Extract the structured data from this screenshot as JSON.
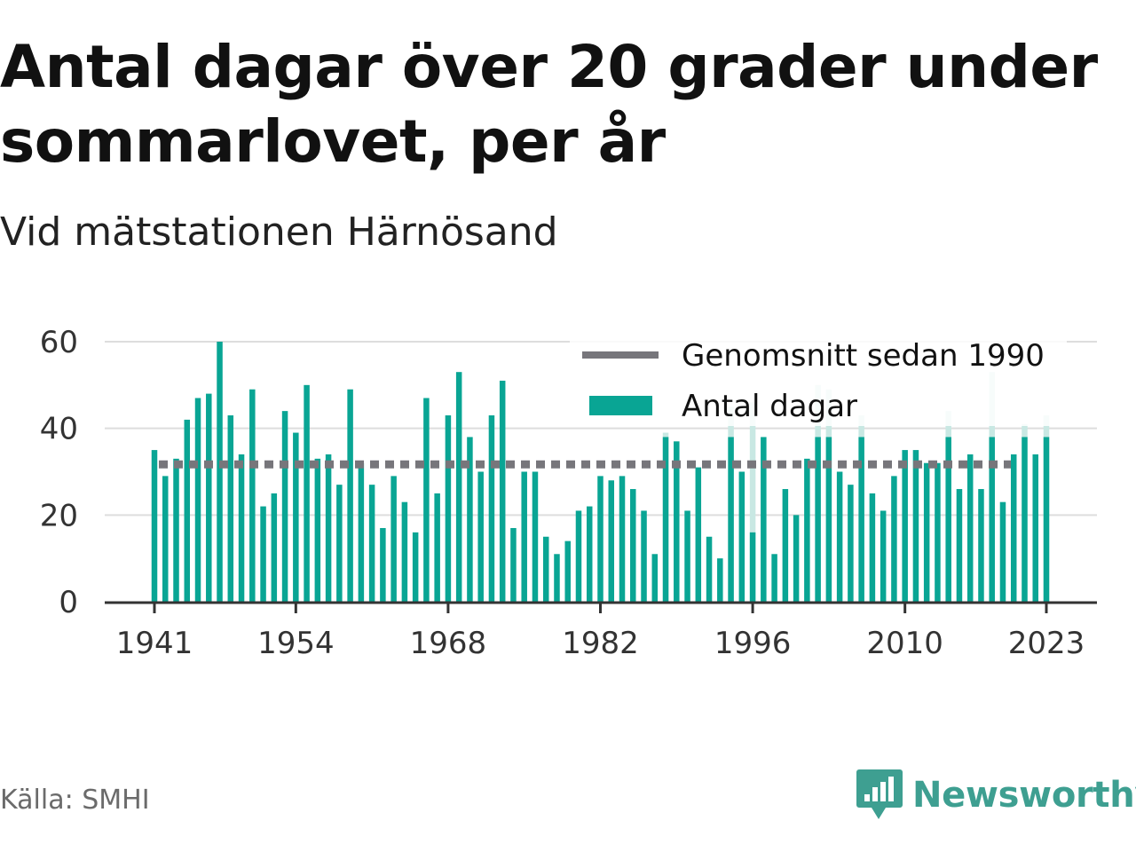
{
  "title": "Antal dagar över 20 grader under sommarlovet, per år",
  "subtitle": "Vid mätstationen Härnösand",
  "source": "Källa: SMHI",
  "brand": {
    "name": "Newsworthy"
  },
  "colors": {
    "bar": "#09a594",
    "bar_faded": "#c8e8e3",
    "average_line": "#77767b",
    "grid": "#dddddd",
    "axis": "#333333",
    "brand": "#3e9f91"
  },
  "chart_data": {
    "type": "bar",
    "x_ticks": [
      "1941",
      "1954",
      "1968",
      "1982",
      "1996",
      "2010",
      "2023"
    ],
    "y_ticks": [
      "0",
      "20",
      "40",
      "60"
    ],
    "ylim": [
      0,
      60
    ],
    "grid": true,
    "legend_position": "top-right",
    "legend": [
      {
        "label": "Genomsnitt sedan 1990",
        "kind": "line"
      },
      {
        "label": "Antal dagar",
        "kind": "bar"
      }
    ],
    "average_since_1990": 31.7,
    "years": [
      1941,
      1942,
      1943,
      1944,
      1945,
      1946,
      1947,
      1948,
      1949,
      1950,
      1951,
      1952,
      1953,
      1954,
      1955,
      1956,
      1957,
      1958,
      1959,
      1960,
      1961,
      1962,
      1963,
      1964,
      1965,
      1966,
      1967,
      1968,
      1969,
      1970,
      1971,
      1972,
      1973,
      1974,
      1975,
      1976,
      1977,
      1978,
      1979,
      1980,
      1981,
      1982,
      1983,
      1984,
      1985,
      1986,
      1987,
      1988,
      1989,
      1990,
      1991,
      1992,
      1993,
      1994,
      1995,
      1996,
      1997,
      1998,
      1999,
      2000,
      2001,
      2002,
      2003,
      2004,
      2005,
      2006,
      2007,
      2008,
      2009,
      2010,
      2011,
      2012,
      2013,
      2014,
      2015,
      2016,
      2017,
      2018,
      2019,
      2020,
      2021,
      2022,
      2023
    ],
    "values": [
      35,
      29,
      33,
      42,
      47,
      48,
      60,
      43,
      34,
      49,
      22,
      25,
      44,
      39,
      50,
      33,
      34,
      27,
      49,
      32,
      27,
      17,
      29,
      23,
      16,
      47,
      25,
      43,
      53,
      38,
      30,
      43,
      51,
      17,
      30,
      30,
      15,
      11,
      14,
      21,
      22,
      29,
      28,
      29,
      26,
      21,
      11,
      38,
      37,
      21,
      31,
      15,
      10,
      38,
      30,
      16,
      38,
      11,
      26,
      20,
      33,
      38,
      38,
      30,
      27,
      38,
      25,
      21,
      29,
      35,
      35,
      32,
      32,
      38,
      26,
      34,
      26,
      38,
      23,
      34,
      38,
      34,
      38
    ],
    "faded_values": [
      null,
      null,
      null,
      null,
      null,
      null,
      null,
      null,
      null,
      null,
      null,
      null,
      null,
      null,
      null,
      null,
      null,
      null,
      null,
      null,
      null,
      null,
      null,
      null,
      null,
      null,
      null,
      null,
      null,
      null,
      null,
      null,
      null,
      null,
      null,
      null,
      null,
      null,
      null,
      null,
      null,
      null,
      null,
      null,
      null,
      null,
      null,
      39,
      null,
      null,
      null,
      null,
      null,
      45,
      null,
      46,
      null,
      null,
      null,
      null,
      null,
      50,
      49,
      null,
      null,
      43,
      null,
      null,
      null,
      null,
      null,
      null,
      null,
      44,
      null,
      null,
      null,
      53,
      null,
      null,
      41,
      null,
      43
    ]
  }
}
